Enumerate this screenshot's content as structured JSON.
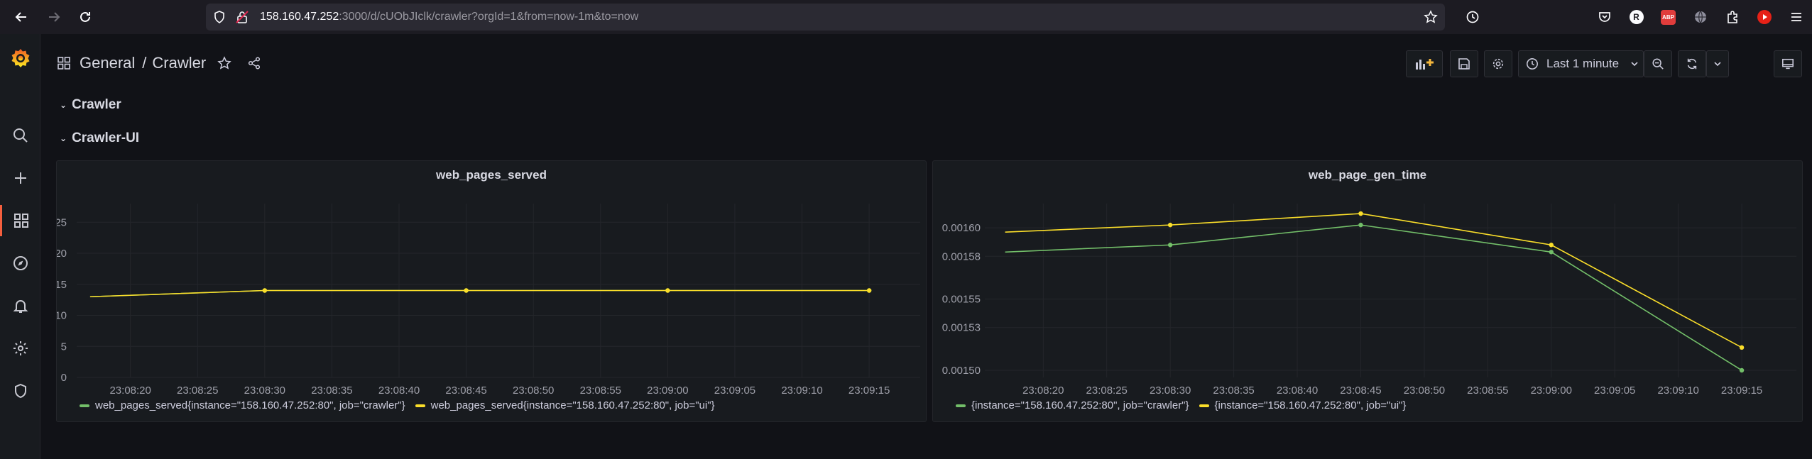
{
  "browser": {
    "url_host": "158.160.47.252",
    "url_rest": ":3000/d/cUObJIclk/crawler?orgId=1&from=now-1m&to=now",
    "profile_letter": "R",
    "abp_label": "ABP"
  },
  "header": {
    "breadcrumb_folder": "General",
    "breadcrumb_sep": "/",
    "breadcrumb_dashboard": "Crawler",
    "time_range": "Last 1 minute"
  },
  "rows": [
    {
      "title": "Crawler"
    },
    {
      "title": "Crawler-UI"
    }
  ],
  "colors": {
    "green": "#73bf69",
    "yellow": "#fade2a",
    "grafana_orange": "#f55f3e"
  },
  "chart_data": [
    {
      "type": "line",
      "title": "web_pages_served",
      "x": [
        "23:08:20",
        "23:08:25",
        "23:08:30",
        "23:08:35",
        "23:08:40",
        "23:08:45",
        "23:08:50",
        "23:08:55",
        "23:09:00",
        "23:09:05",
        "23:09:10",
        "23:09:15"
      ],
      "y_ticks": [
        "0",
        "5",
        "10",
        "15",
        "20",
        "25"
      ],
      "ylim": [
        0,
        28
      ],
      "series": [
        {
          "name": "web_pages_served{instance=\"158.160.47.252:80\", job=\"crawler\"}",
          "color": "#73bf69",
          "points": [
            [
              "23:08:17",
              13
            ],
            [
              "23:08:30",
              14
            ],
            [
              "23:08:45",
              14
            ],
            [
              "23:09:00",
              14
            ],
            [
              "23:09:15",
              14
            ]
          ]
        },
        {
          "name": "web_pages_served{instance=\"158.160.47.252:80\", job=\"ui\"}",
          "color": "#fade2a",
          "points": [
            [
              "23:08:17",
              13
            ],
            [
              "23:08:30",
              14
            ],
            [
              "23:08:45",
              14
            ],
            [
              "23:09:00",
              14
            ],
            [
              "23:09:15",
              14
            ]
          ]
        }
      ]
    },
    {
      "type": "line",
      "title": "web_page_gen_time",
      "x": [
        "23:08:20",
        "23:08:25",
        "23:08:30",
        "23:08:35",
        "23:08:40",
        "23:08:45",
        "23:08:50",
        "23:08:55",
        "23:09:00",
        "23:09:05",
        "23:09:10",
        "23:09:15"
      ],
      "y_ticks": [
        "0.00150",
        "0.00153",
        "0.00155",
        "0.00158",
        "0.00160"
      ],
      "ylim": [
        0.001495,
        0.001617
      ],
      "series": [
        {
          "name": "{instance=\"158.160.47.252:80\", job=\"crawler\"}",
          "color": "#73bf69",
          "points": [
            [
              "23:08:17",
              0.001583
            ],
            [
              "23:08:30",
              0.001588
            ],
            [
              "23:08:45",
              0.001602
            ],
            [
              "23:09:00",
              0.001583
            ],
            [
              "23:09:15",
              0.0015
            ]
          ]
        },
        {
          "name": "{instance=\"158.160.47.252:80\", job=\"ui\"}",
          "color": "#fade2a",
          "points": [
            [
              "23:08:17",
              0.001597
            ],
            [
              "23:08:30",
              0.001602
            ],
            [
              "23:08:45",
              0.00161
            ],
            [
              "23:09:00",
              0.001588
            ],
            [
              "23:09:15",
              0.001516
            ]
          ]
        }
      ]
    }
  ]
}
